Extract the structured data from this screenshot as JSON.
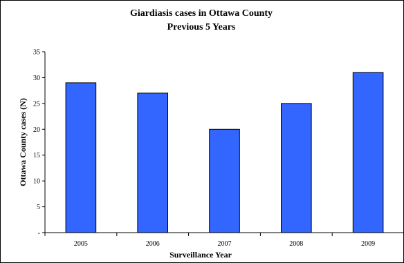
{
  "chart_data": {
    "type": "bar",
    "title": "Giardiasis cases in Ottawa County",
    "subtitle": "Previous 5 Years",
    "xlabel": "Surveillance Year",
    "ylabel": "Ottawa County cases (N)",
    "categories": [
      "2005",
      "2006",
      "2007",
      "2008",
      "2009"
    ],
    "values": [
      29,
      27,
      20,
      25,
      31
    ],
    "ylim": [
      0,
      35
    ],
    "yticks": [
      0,
      5,
      10,
      15,
      20,
      25,
      30,
      35
    ],
    "ytick_labels": [
      "-",
      "5",
      "10",
      "15",
      "20",
      "25",
      "30",
      "35"
    ],
    "grid": false,
    "legend": "none",
    "bar_color": "#3366ff"
  }
}
